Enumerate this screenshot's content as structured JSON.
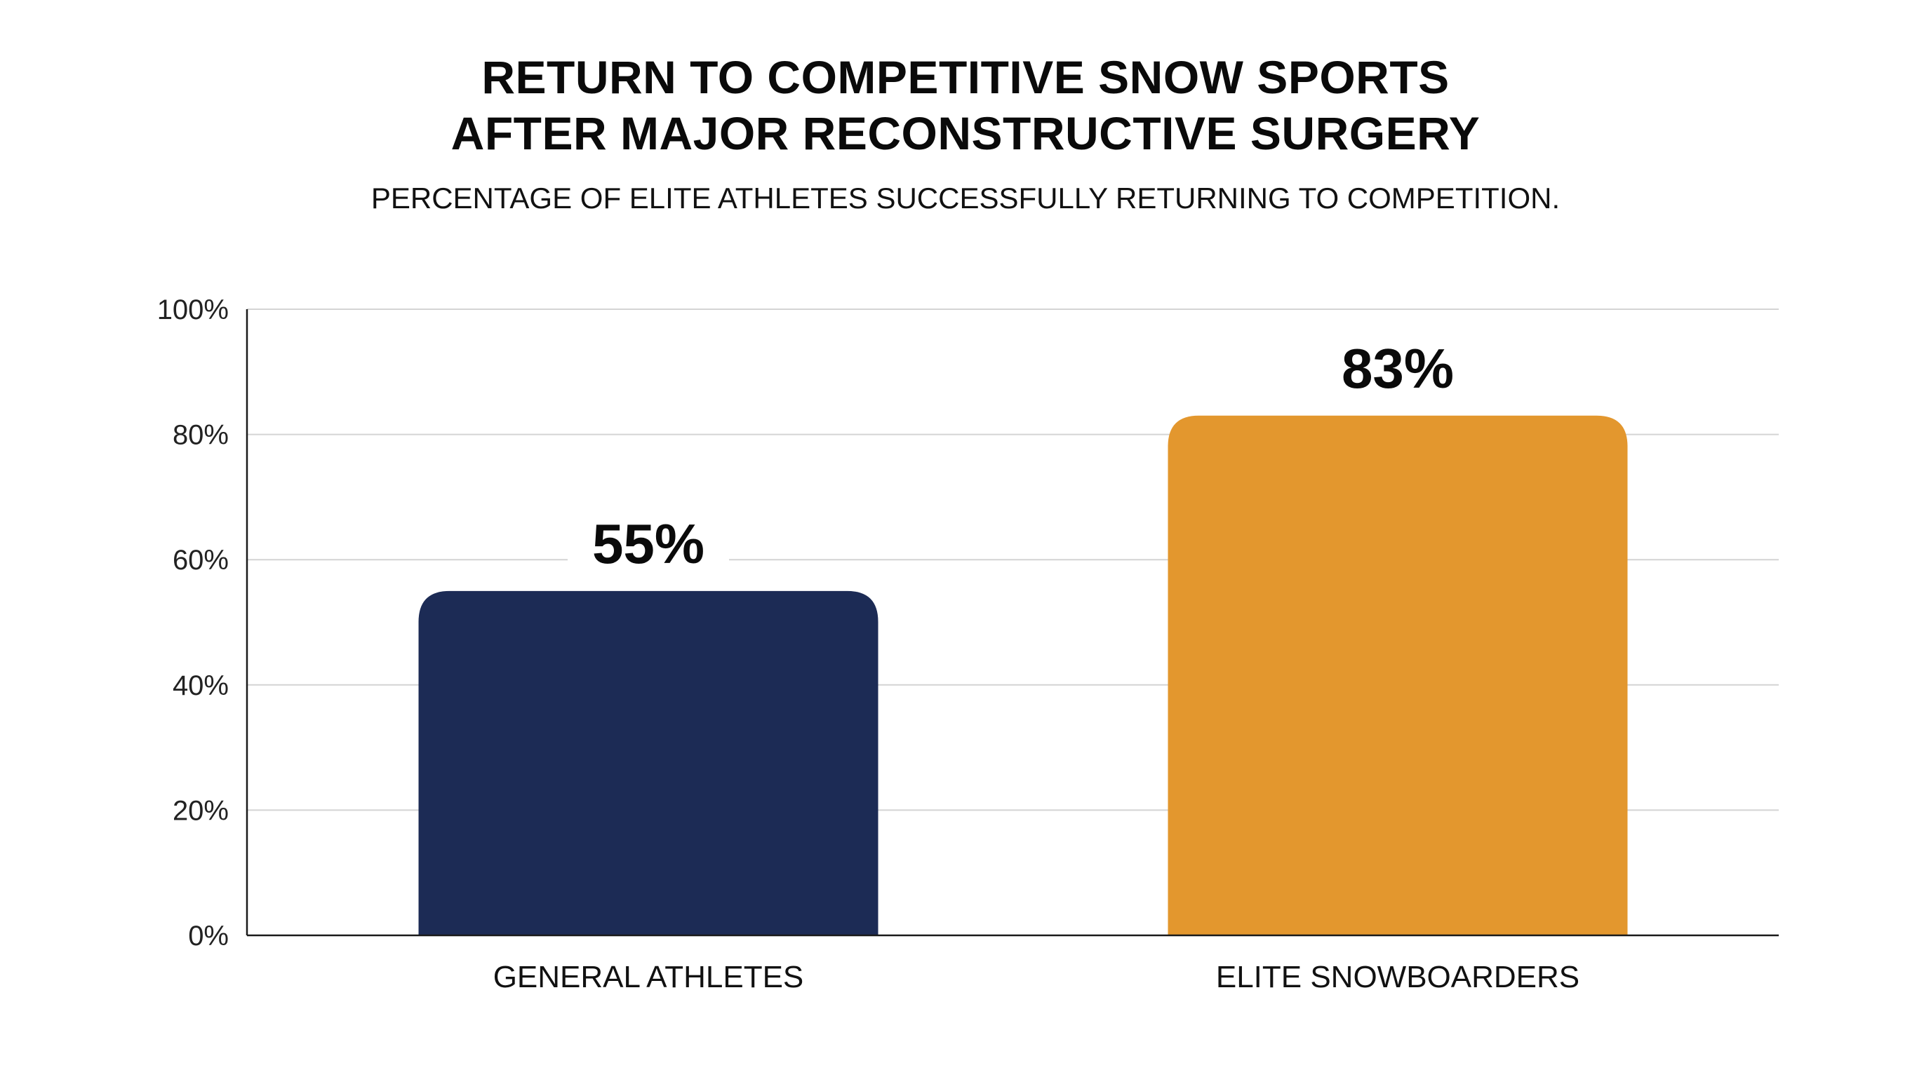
{
  "chart_data": {
    "type": "bar",
    "title": [
      "RETURN TO COMPETITIVE SNOW SPORTS",
      "AFTER MAJOR RECONSTRUCTIVE SURGERY"
    ],
    "subtitle": "PERCENTAGE OF ELITE ATHLETES SUCCESSFULLY RETURNING TO COMPETITION.",
    "categories": [
      "GENERAL ATHLETES",
      "ELITE SNOWBOARDERS"
    ],
    "values": [
      55,
      83
    ],
    "data_labels": [
      "55%",
      "83%"
    ],
    "colors": [
      "#1c2b55",
      "#e3972e"
    ],
    "ylim": [
      0,
      100
    ],
    "yticks": [
      0,
      20,
      40,
      60,
      80,
      100
    ],
    "ytick_labels": [
      "0%",
      "20%",
      "40%",
      "60%",
      "80%",
      "100%"
    ],
    "grid": true,
    "xlabel": "",
    "ylabel": ""
  }
}
